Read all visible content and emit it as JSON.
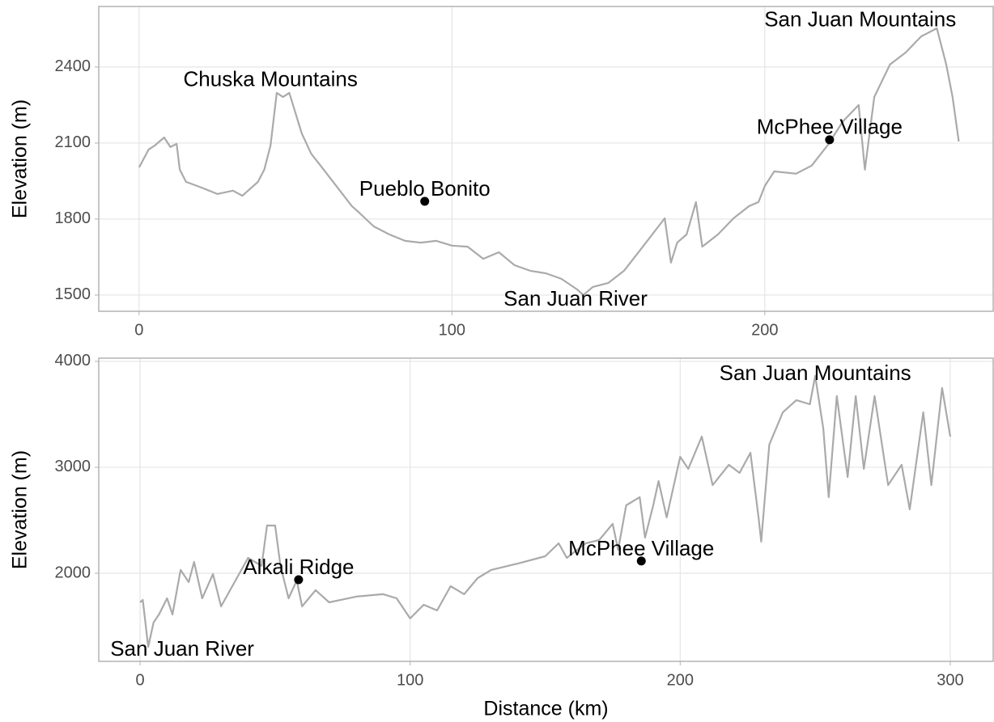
{
  "chart_data": [
    {
      "type": "line",
      "ylabel": "Elevation (m)",
      "color": "#aaaaaa",
      "grid": true,
      "xlim": [
        -12.9,
        273
      ],
      "ylim": [
        1436,
        2639
      ],
      "xticks": [
        0,
        100,
        200
      ],
      "yticks": [
        1500,
        1800,
        2100,
        2400
      ],
      "x": [
        0,
        3,
        5,
        8,
        10,
        12,
        13,
        15,
        20,
        25,
        30,
        33,
        38,
        40,
        42,
        44,
        46,
        48,
        50,
        52,
        55,
        58,
        62,
        65,
        68,
        70,
        75,
        80,
        85,
        90,
        95,
        100,
        105,
        110,
        115,
        120,
        125,
        130,
        135,
        140,
        142,
        145,
        150,
        155,
        160,
        165,
        168,
        170,
        172,
        175,
        178,
        180,
        185,
        190,
        195,
        198,
        200,
        203,
        210,
        215,
        220,
        225,
        230,
        232,
        235,
        240,
        245,
        250,
        255,
        258,
        260,
        262
      ],
      "values": [
        2004,
        2074,
        2090,
        2122,
        2084,
        2097,
        1995,
        1947,
        1924,
        1899,
        1912,
        1892,
        1947,
        1995,
        2090,
        2298,
        2282,
        2298,
        2218,
        2138,
        2058,
        2011,
        1947,
        1899,
        1851,
        1829,
        1771,
        1739,
        1714,
        1707,
        1714,
        1695,
        1691,
        1643,
        1669,
        1618,
        1596,
        1586,
        1564,
        1522,
        1500,
        1532,
        1548,
        1596,
        1675,
        1755,
        1803,
        1628,
        1707,
        1739,
        1867,
        1691,
        1739,
        1803,
        1851,
        1867,
        1931,
        1988,
        1979,
        2011,
        2090,
        2186,
        2250,
        1995,
        2282,
        2410,
        2457,
        2521,
        2553,
        2410,
        2282,
        2106
      ],
      "points": [
        {
          "name": "Pueblo Bonito",
          "x": 91.3,
          "y": 1870
        },
        {
          "name": "McPhee Village",
          "x": 220.7,
          "y": 2113
        }
      ],
      "annotations": [
        {
          "text": "Chuska Mountains",
          "x": 42,
          "y": 2346
        },
        {
          "text": "San Juan River",
          "x": 139.5,
          "y": 1481
        },
        {
          "text": "San Juan Mountains",
          "x": 230.5,
          "y": 2582
        }
      ]
    },
    {
      "type": "line",
      "xlabel": "Distance (km)",
      "ylabel": "Elevation (m)",
      "color": "#aaaaaa",
      "grid": true,
      "xlim": [
        -15.3,
        315.9
      ],
      "ylim": [
        1168,
        4030
      ],
      "xticks": [
        0,
        100,
        200,
        300
      ],
      "yticks": [
        2000,
        3000,
        4000
      ],
      "x": [
        0,
        1,
        3,
        5,
        7,
        10,
        12,
        15,
        18,
        20,
        23,
        27,
        30,
        35,
        40,
        45,
        47,
        50,
        52,
        55,
        58,
        60,
        65,
        70,
        80,
        90,
        95,
        100,
        105,
        110,
        115,
        120,
        125,
        130,
        140,
        150,
        155,
        158,
        165,
        170,
        175,
        177,
        180,
        185,
        187,
        190,
        192,
        195,
        200,
        203,
        208,
        212,
        218,
        222,
        226,
        229,
        230,
        233,
        238,
        243,
        248,
        250,
        253,
        255,
        258,
        262,
        265,
        268,
        272,
        277,
        282,
        285,
        290,
        293,
        297,
        300
      ],
      "values": [
        1725,
        1748,
        1305,
        1534,
        1611,
        1763,
        1611,
        2031,
        1916,
        2107,
        1763,
        1992,
        1687,
        1916,
        2145,
        2069,
        2450,
        2450,
        2069,
        1763,
        1931,
        1687,
        1840,
        1725,
        1779,
        1802,
        1763,
        1573,
        1702,
        1649,
        1878,
        1802,
        1954,
        2031,
        2092,
        2160,
        2282,
        2145,
        2282,
        2313,
        2466,
        2221,
        2641,
        2718,
        2336,
        2641,
        2870,
        2527,
        3099,
        2985,
        3290,
        2832,
        3023,
        2947,
        3137,
        2527,
        2298,
        3214,
        3519,
        3634,
        3595,
        3863,
        3366,
        2718,
        3672,
        2908,
        3672,
        2985,
        3672,
        2832,
        3023,
        2603,
        3519,
        2832,
        3748,
        3290
      ],
      "points": [
        {
          "name": "Alkali Ridge",
          "x": 58.7,
          "y": 1939
        },
        {
          "name": "McPhee Village",
          "x": 185.6,
          "y": 2115
        }
      ],
      "annotations": [
        {
          "text": "San Juan Mountains",
          "x": 250,
          "y": 3878
        },
        {
          "text": "San Juan River",
          "x": 15.6,
          "y": 1275
        }
      ]
    }
  ]
}
